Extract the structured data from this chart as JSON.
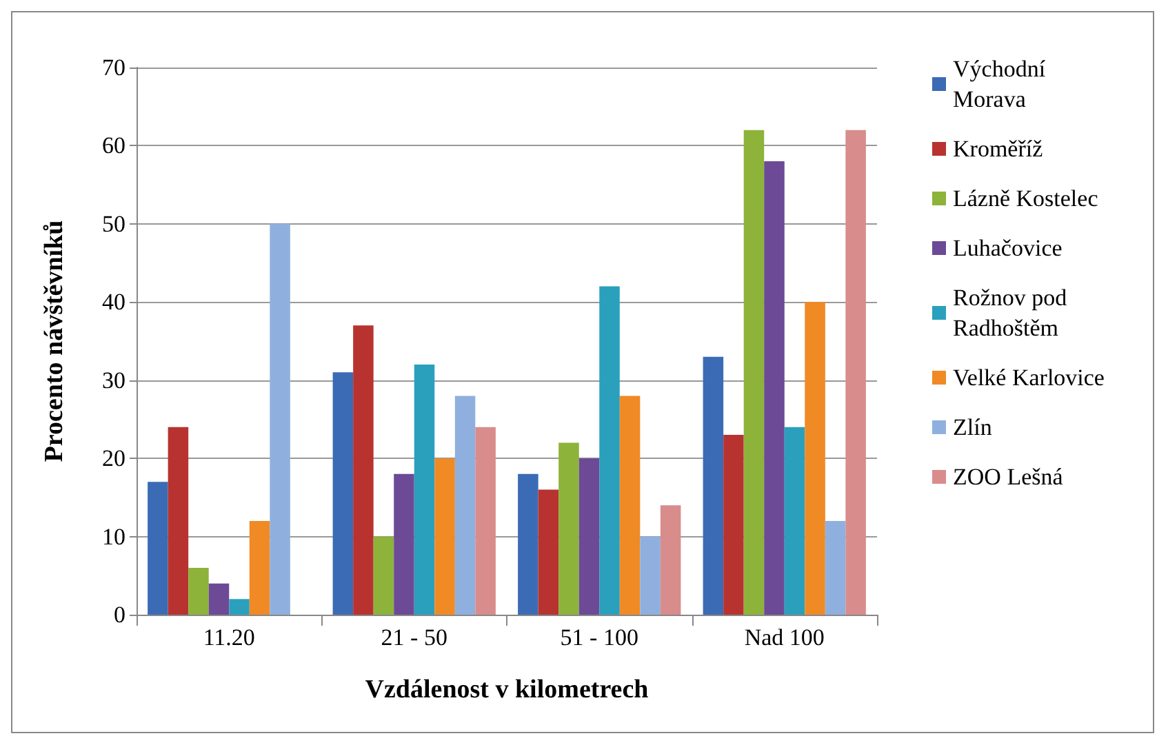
{
  "chart_data": {
    "type": "bar",
    "xlabel": "Vzdálenost v kilometrech",
    "ylabel": "Procento návštěvníků",
    "categories": [
      "11.20",
      "21 - 50",
      "51 - 100",
      "Nad 100"
    ],
    "series": [
      {
        "name": "Východní Morava",
        "color": "#3b6bb5",
        "values": [
          17,
          31,
          18,
          33
        ]
      },
      {
        "name": "Kroměříž",
        "color": "#b83330",
        "values": [
          24,
          37,
          16,
          23
        ]
      },
      {
        "name": "Lázně Kostelec",
        "color": "#8db33a",
        "values": [
          6,
          10,
          22,
          62
        ]
      },
      {
        "name": "Luhačovice",
        "color": "#6c4a96",
        "values": [
          4,
          18,
          20,
          58
        ]
      },
      {
        "name": "Rožnov pod Radhoštěm",
        "color": "#2aa0bd",
        "values": [
          2,
          32,
          42,
          24
        ]
      },
      {
        "name": "Velké Karlovice",
        "color": "#f08a24",
        "values": [
          12,
          20,
          28,
          40
        ]
      },
      {
        "name": "Zlín",
        "color": "#8fb0df",
        "values": [
          50,
          28,
          10,
          12
        ]
      },
      {
        "name": "ZOO Lešná",
        "color": "#d98c8c",
        "values": [
          0,
          24,
          14,
          62
        ]
      }
    ],
    "ylim": [
      0,
      70
    ],
    "yticks": [
      0,
      10,
      20,
      30,
      40,
      50,
      60,
      70
    ],
    "grid": "y",
    "legend": "right"
  }
}
